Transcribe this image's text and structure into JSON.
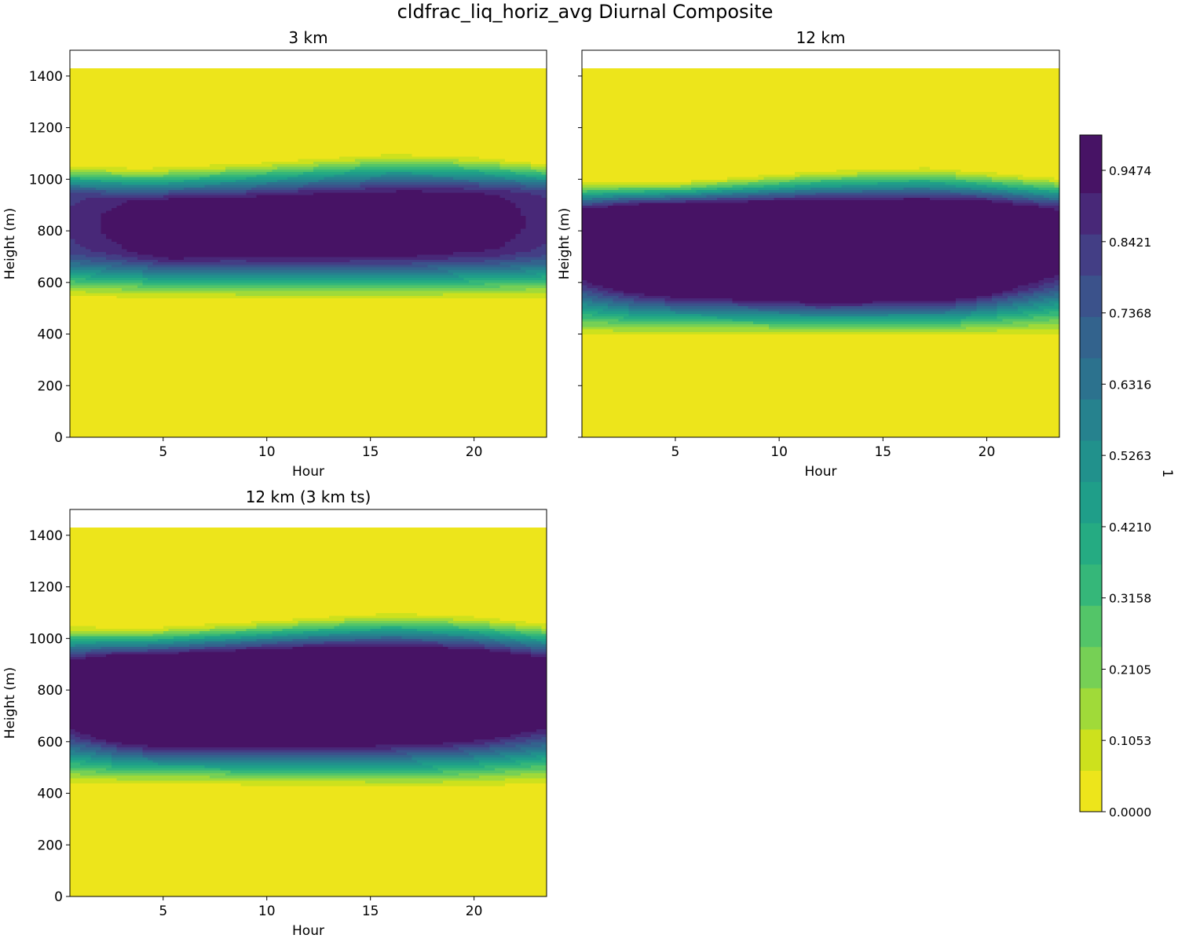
{
  "figure": {
    "title": "cldfrac_liq_horiz_avg Diurnal Composite"
  },
  "colors": {
    "levels": [
      "#ede51b",
      "#cde11d",
      "#a0da39",
      "#76d055",
      "#53c568",
      "#35b779",
      "#25ab82",
      "#1f9e89",
      "#21918c",
      "#26828e",
      "#2c728e",
      "#33638d",
      "#3b528b",
      "#433e85",
      "#482878",
      "#471365"
    ],
    "axis": "#000000",
    "background": "#ffffff"
  },
  "chart_data": [
    {
      "type": "heatmap",
      "panel": "top-left",
      "title": "3 km",
      "xlabel": "Hour",
      "ylabel": "Height (m)",
      "xlim": [
        0.5,
        23.5
      ],
      "ylim": [
        0,
        1500
      ],
      "data_top": 1430,
      "xticks": [
        5,
        10,
        15,
        20
      ],
      "yticks": [
        0,
        200,
        400,
        600,
        800,
        1000,
        1200,
        1400
      ],
      "show_ytick_labels": true,
      "cloud_base": [
        [
          0.5,
          510
        ],
        [
          6,
          505
        ],
        [
          12,
          500
        ],
        [
          18,
          500
        ],
        [
          23.5,
          505
        ]
      ],
      "cloud_top": [
        [
          0.5,
          1075
        ],
        [
          4,
          1070
        ],
        [
          10,
          1095
        ],
        [
          16,
          1130
        ],
        [
          20,
          1115
        ],
        [
          23.5,
          1085
        ]
      ],
      "core_height": [
        [
          0.5,
          835
        ],
        [
          5,
          815
        ],
        [
          12,
          825
        ],
        [
          18,
          835
        ],
        [
          23.5,
          840
        ]
      ],
      "core_half_width": [
        [
          0.5,
          90
        ],
        [
          5,
          75
        ],
        [
          12,
          85
        ],
        [
          18,
          90
        ],
        [
          23.5,
          95
        ]
      ],
      "core_value": [
        [
          0.5,
          0.75
        ],
        [
          3,
          0.82
        ],
        [
          5.5,
          0.91
        ],
        [
          8,
          0.88
        ],
        [
          12,
          0.89
        ],
        [
          17,
          0.88
        ],
        [
          21,
          0.83
        ],
        [
          23.5,
          0.76
        ]
      ]
    },
    {
      "type": "heatmap",
      "panel": "top-right",
      "title": "12 km",
      "xlabel": "Hour",
      "ylabel": "Height (m)",
      "xlim": [
        0.5,
        23.5
      ],
      "ylim": [
        0,
        1500
      ],
      "data_top": 1430,
      "xticks": [
        5,
        10,
        15,
        20
      ],
      "yticks": [
        0,
        200,
        400,
        600,
        800,
        1000,
        1200,
        1400
      ],
      "show_ytick_labels": false,
      "cloud_base": [
        [
          0.5,
          350
        ],
        [
          6,
          365
        ],
        [
          12,
          370
        ],
        [
          18,
          365
        ],
        [
          23.5,
          350
        ]
      ],
      "cloud_top": [
        [
          0.5,
          1010
        ],
        [
          5,
          1010
        ],
        [
          12,
          1060
        ],
        [
          17,
          1075
        ],
        [
          23.5,
          1030
        ]
      ],
      "core_height": [
        [
          0.5,
          760
        ],
        [
          5,
          740
        ],
        [
          12,
          725
        ],
        [
          18,
          730
        ],
        [
          23.5,
          770
        ]
      ],
      "core_half_width": [
        [
          0.5,
          100
        ],
        [
          5,
          130
        ],
        [
          12,
          145
        ],
        [
          18,
          140
        ],
        [
          23.5,
          90
        ]
      ],
      "core_value": [
        [
          0.5,
          0.88
        ],
        [
          3,
          0.99
        ],
        [
          12,
          1.0
        ],
        [
          20,
          0.99
        ],
        [
          23.5,
          0.86
        ]
      ]
    },
    {
      "type": "heatmap",
      "panel": "bottom-left",
      "title": "12 km (3 km ts)",
      "xlabel": "Hour",
      "ylabel": "Height (m)",
      "xlim": [
        0.5,
        23.5
      ],
      "ylim": [
        0,
        1500
      ],
      "data_top": 1430,
      "xticks": [
        5,
        10,
        15,
        20
      ],
      "yticks": [
        0,
        200,
        400,
        600,
        800,
        1000,
        1200,
        1400
      ],
      "show_ytick_labels": true,
      "cloud_base": [
        [
          0.5,
          395
        ],
        [
          6,
          405
        ],
        [
          12,
          395
        ],
        [
          18,
          385
        ],
        [
          23.5,
          395
        ]
      ],
      "cloud_top": [
        [
          0.5,
          1075
        ],
        [
          4,
          1065
        ],
        [
          10,
          1095
        ],
        [
          16,
          1130
        ],
        [
          20,
          1115
        ],
        [
          23.5,
          1085
        ]
      ],
      "core_height": [
        [
          0.5,
          790
        ],
        [
          5,
          770
        ],
        [
          12,
          780
        ],
        [
          18,
          790
        ],
        [
          23.5,
          800
        ]
      ],
      "core_half_width": [
        [
          0.5,
          100
        ],
        [
          5,
          125
        ],
        [
          12,
          135
        ],
        [
          18,
          120
        ],
        [
          23.5,
          95
        ]
      ],
      "core_value": [
        [
          0.5,
          0.86
        ],
        [
          3,
          0.99
        ],
        [
          12,
          1.0
        ],
        [
          20,
          0.99
        ],
        [
          23.5,
          0.88
        ]
      ]
    }
  ],
  "colorbar": {
    "label": "1",
    "min": 0.0,
    "max": 1.0,
    "tick_values": [
      0.0,
      0.1053,
      0.2105,
      0.3158,
      0.421,
      0.5263,
      0.6316,
      0.7368,
      0.8421,
      0.9474
    ],
    "tick_labels": [
      "0.0000",
      "0.1053",
      "0.2105",
      "0.3158",
      "0.4210",
      "0.5263",
      "0.6316",
      "0.7368",
      "0.8421",
      "0.9474"
    ]
  }
}
